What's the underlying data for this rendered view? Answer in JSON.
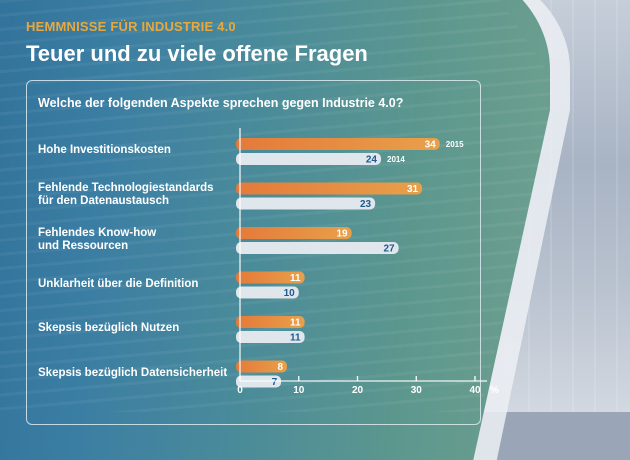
{
  "header": {
    "kicker": "HEMMNISSE FÜR INDUSTRIE 4.0",
    "title": "Teuer und zu viele offene Fragen"
  },
  "colors": {
    "series_2015": "#e8873c",
    "series_2014": "#dfe6ec",
    "value_2015_text": "#ffffff",
    "value_2014_text": "#1e5a8e",
    "kicker": "#e7a93e"
  },
  "chart_data": {
    "type": "bar",
    "orientation": "horizontal",
    "title": "Welche der folgenden Aspekte sprechen gegen Industrie 4.0?",
    "categories": [
      [
        "Hohe Investitionskosten"
      ],
      [
        "Fehlende Technologiestandards",
        "für den Datenaustausch"
      ],
      [
        "Fehlendes Know-how",
        "und Ressourcen"
      ],
      [
        "Unklarheit über die Definition"
      ],
      [
        "Skepsis bezüglich Nutzen"
      ],
      [
        "Skepsis bezüglich Datensicherheit"
      ]
    ],
    "series": [
      {
        "name": "2015",
        "values": [
          34,
          31,
          19,
          11,
          11,
          8
        ]
      },
      {
        "name": "2014",
        "values": [
          24,
          23,
          27,
          10,
          11,
          7
        ]
      }
    ],
    "xlim": [
      0,
      40
    ],
    "xticks": [
      0,
      10,
      20,
      30,
      40
    ],
    "xlabel": "%",
    "legend": "inline labels next to first category bars",
    "grid": false
  }
}
